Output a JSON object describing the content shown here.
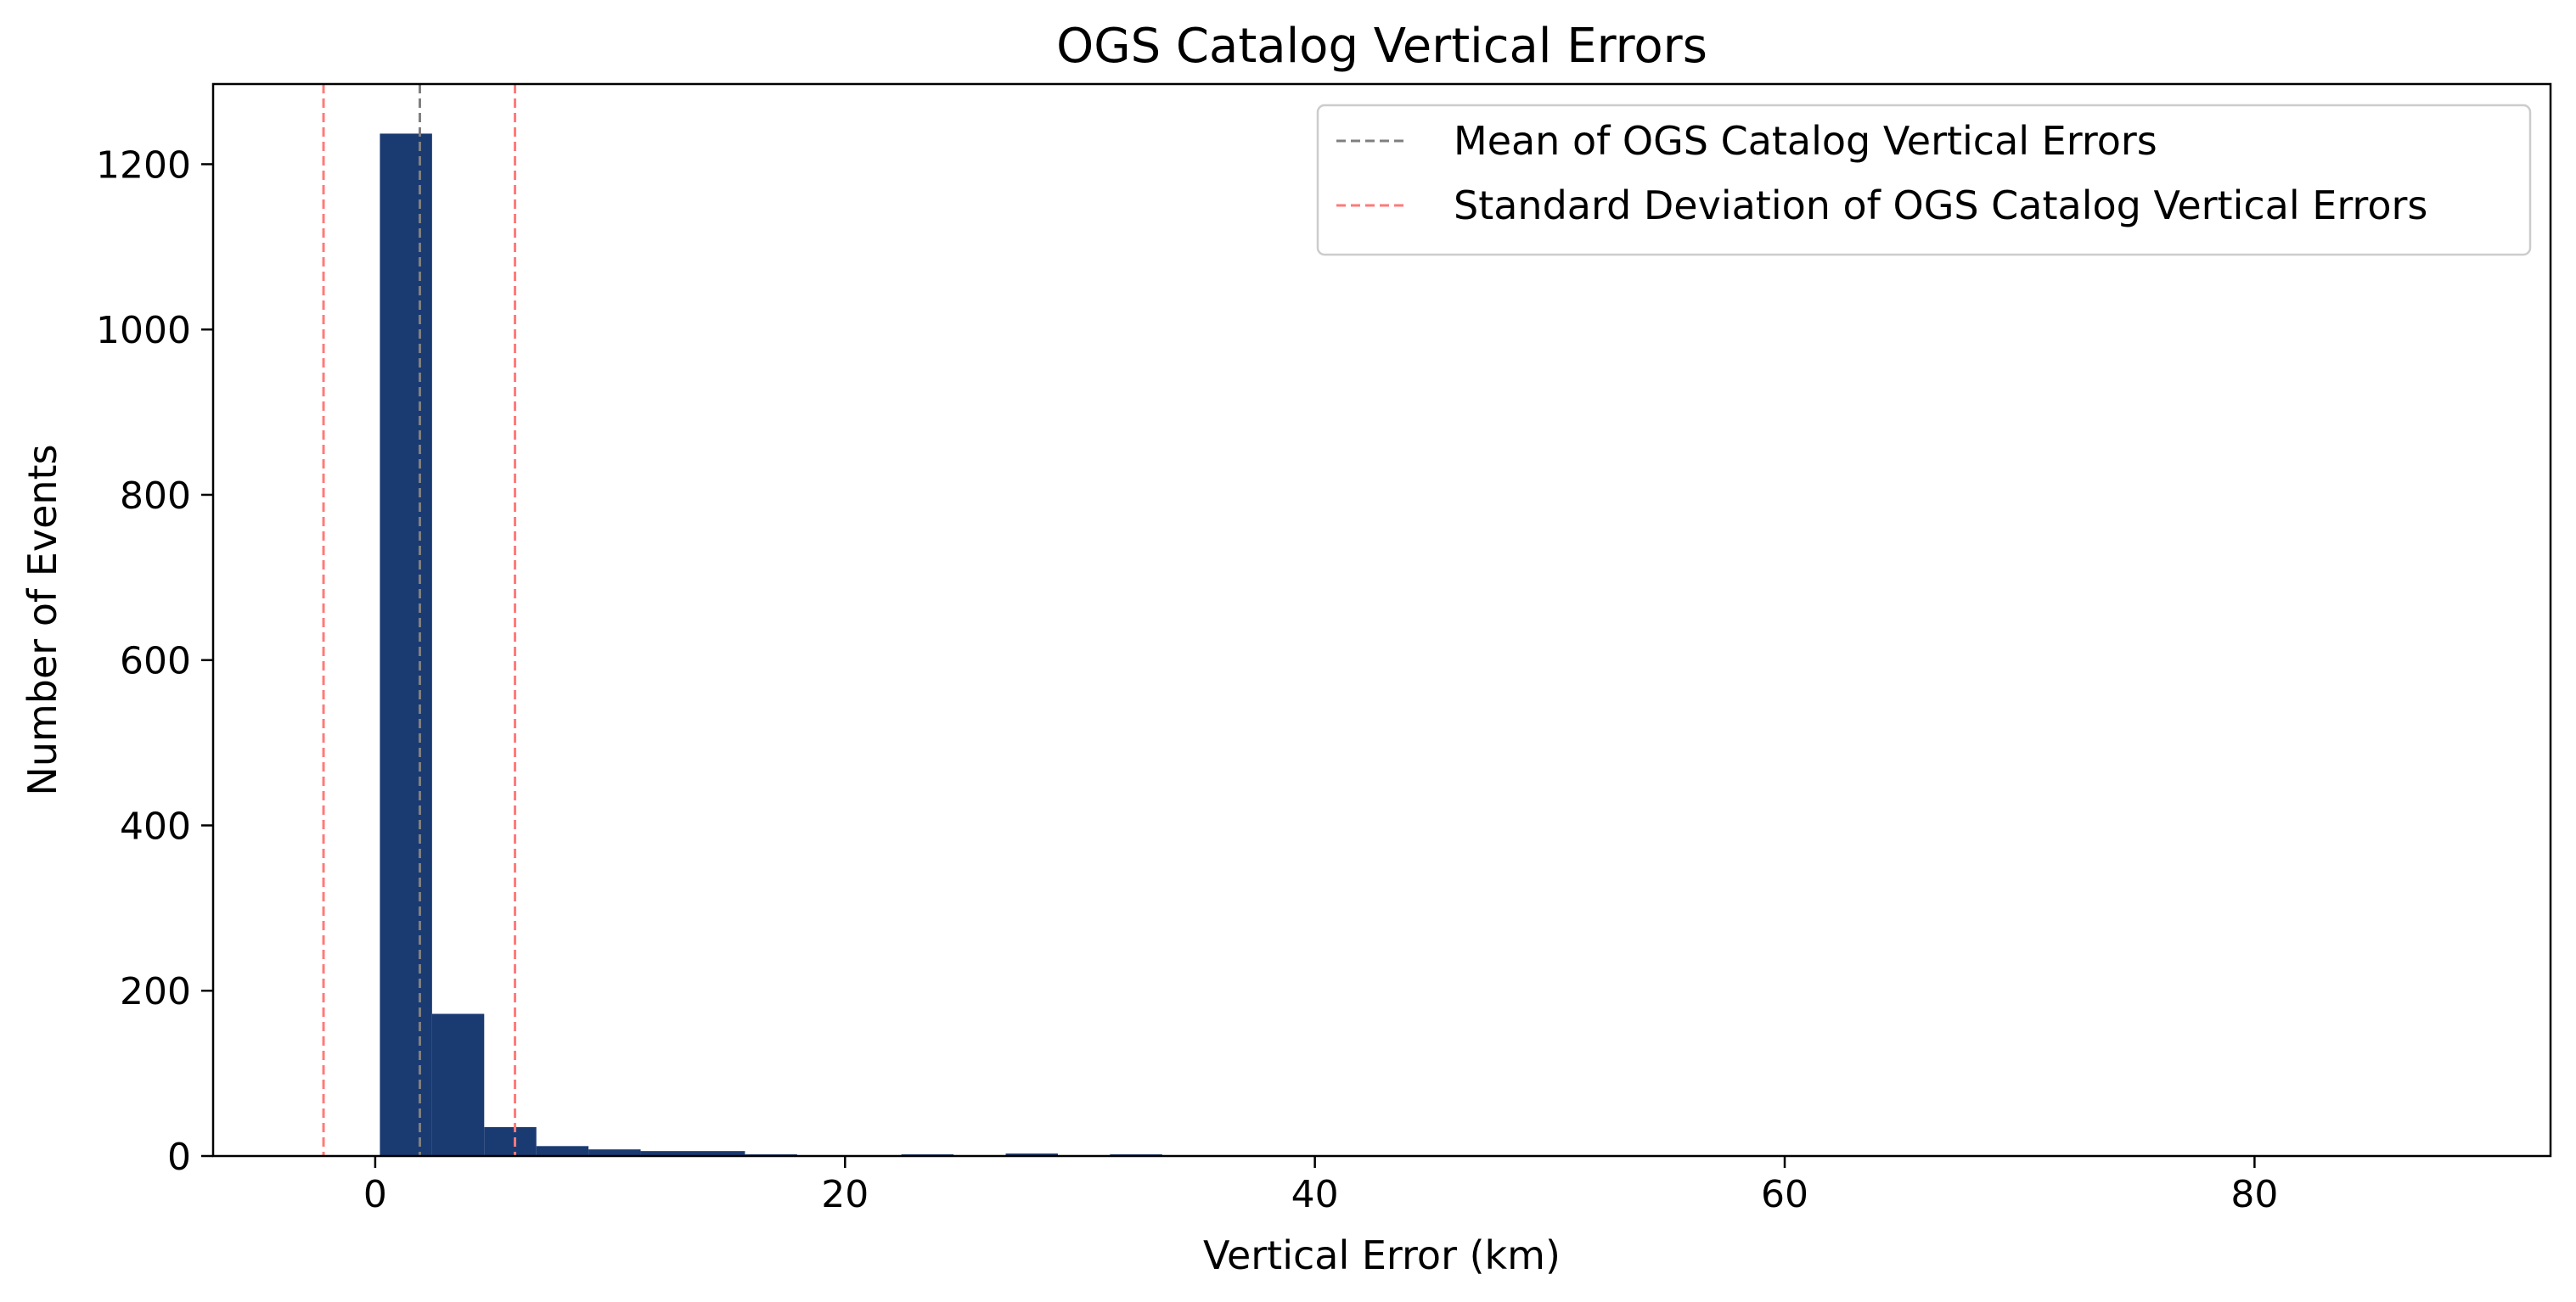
{
  "chart_data": {
    "type": "bar",
    "title": "OGS Catalog Vertical Errors",
    "xlabel": "Vertical Error (km)",
    "ylabel": "Number of Events",
    "xlim": [
      -6.9,
      92.6
    ],
    "ylim": [
      0,
      1297
    ],
    "xticks": [
      0,
      20,
      40,
      60,
      80
    ],
    "yticks": [
      0,
      200,
      400,
      600,
      800,
      1000,
      1200
    ],
    "bar_color": "#1a3a72",
    "bin_width": 2.22,
    "bins": [
      {
        "x0": 0.2,
        "count": 1237
      },
      {
        "x0": 2.42,
        "count": 172
      },
      {
        "x0": 4.64,
        "count": 35
      },
      {
        "x0": 6.86,
        "count": 12
      },
      {
        "x0": 9.08,
        "count": 8
      },
      {
        "x0": 11.3,
        "count": 6
      },
      {
        "x0": 13.52,
        "count": 6
      },
      {
        "x0": 15.74,
        "count": 2
      },
      {
        "x0": 17.96,
        "count": 1
      },
      {
        "x0": 20.18,
        "count": 1
      },
      {
        "x0": 22.4,
        "count": 2
      },
      {
        "x0": 24.62,
        "count": 1
      },
      {
        "x0": 26.84,
        "count": 3
      },
      {
        "x0": 29.06,
        "count": 1
      },
      {
        "x0": 31.28,
        "count": 2
      },
      {
        "x0": 33.5,
        "count": 1
      }
    ],
    "lines": [
      {
        "name": "Mean of OGS Catalog Vertical Errors",
        "x": 1.9,
        "color": "#7f7f7f",
        "legend": true
      },
      {
        "name": "Standard Deviation of OGS Catalog Vertical Errors",
        "x": -2.2,
        "color": "#ff7a7a",
        "legend": true
      },
      {
        "name": "Standard Deviation of OGS Catalog Vertical Errors",
        "x": 5.95,
        "color": "#ff7a7a",
        "legend": false
      }
    ],
    "legend_position": "top-right",
    "grid": false
  }
}
